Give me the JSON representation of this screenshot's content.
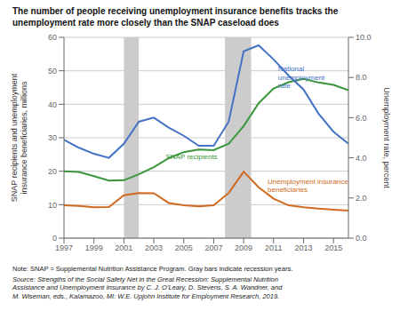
{
  "chart_data": {
    "type": "line",
    "title": "The number of people receiving unemployment insurance benefits tracks the\nunemployment rate more closely than the SNAP caseload does",
    "y_label": "SNAP recipients and unemployment\ninsurance beneficiaries, millions",
    "y2_label": "Unemployment rate, percent",
    "note": "Note: SNAP = Supplemental Nutrition Assistance Program. Gray bars indicate recession years.",
    "source": "Source: Strengths of the Social Safety Net in the Great Recession: Supplemental Nutrition\nAssistance and Unemployment Insurance by C. J. O’Leary, D. Stevens, S. A. Wandner, and\nM. Wiseman, eds., Kalamazoo, MI: W.E. Upjohn Institute for Employment Research, 2019.",
    "x": [
      1997,
      1998,
      1999,
      2000,
      2001,
      2002,
      2003,
      2004,
      2005,
      2006,
      2007,
      2008,
      2009,
      2010,
      2011,
      2012,
      2013,
      2014,
      2015,
      2016
    ],
    "xlim": [
      1997,
      2016
    ],
    "xticks": [
      1997,
      1999,
      2001,
      2003,
      2005,
      2007,
      2009,
      2011,
      2013,
      2015
    ],
    "ylim": [
      0,
      60
    ],
    "yticks": [
      0,
      10,
      20,
      30,
      40,
      50,
      60
    ],
    "y2lim": [
      0.0,
      10.0
    ],
    "y2ticks": [
      {
        "value": 0.0,
        "label": "0.0"
      },
      {
        "value": 2.0,
        "label": "2.0"
      },
      {
        "value": 4.0,
        "label": "4.0"
      },
      {
        "value": 6.0,
        "label": "6.0"
      },
      {
        "value": 8.0,
        "label": "8.0"
      },
      {
        "value": 10.0,
        "label": "10.0"
      }
    ],
    "grid": true,
    "series": [
      {
        "name": "SNAP recipients",
        "color": "#3a963a",
        "values": [
          20.0,
          19.8,
          18.5,
          17.2,
          17.3,
          19.1,
          21.2,
          23.9,
          25.7,
          26.5,
          26.3,
          28.2,
          33.5,
          40.3,
          44.7,
          46.6,
          47.6,
          46.5,
          45.8,
          44.2
        ]
      },
      {
        "name": "Unemployment insurance\nbeneficiaries",
        "color": "#d06a20",
        "values": [
          9.8,
          9.6,
          9.2,
          9.3,
          12.8,
          13.5,
          13.4,
          10.5,
          9.8,
          9.5,
          9.8,
          13.5,
          19.8,
          15.2,
          11.8,
          9.8,
          9.2,
          8.8,
          8.5,
          8.2
        ]
      },
      {
        "name": "National\nunemployment\nrate",
        "color": "#4472c4",
        "axis": "y2",
        "values": [
          4.9,
          4.5,
          4.2,
          4.0,
          4.7,
          5.8,
          6.0,
          5.5,
          5.1,
          4.6,
          4.6,
          5.8,
          9.3,
          9.6,
          8.9,
          8.1,
          7.4,
          6.2,
          5.3,
          4.7
        ]
      }
    ],
    "shaded_spans": [
      {
        "start": 2001.0,
        "end": 2002.0,
        "color": "#cccccc"
      },
      {
        "start": 2007.75,
        "end": 2009.5,
        "color": "#cccccc"
      }
    ],
    "annotations": [
      {
        "text": "SNAP recipients",
        "x": 2003.8,
        "y": 23.5,
        "color": "#3a963a"
      },
      {
        "text": "National\nunemployment\nrate",
        "x": 2011.3,
        "y": 8.6,
        "axis": "y2",
        "color": "#4472c4"
      },
      {
        "text": "Unemployment insurance\nbeneficiaries",
        "x": 2010.6,
        "y": 3.0,
        "axis": "y2",
        "color": "#d06a20"
      }
    ]
  }
}
